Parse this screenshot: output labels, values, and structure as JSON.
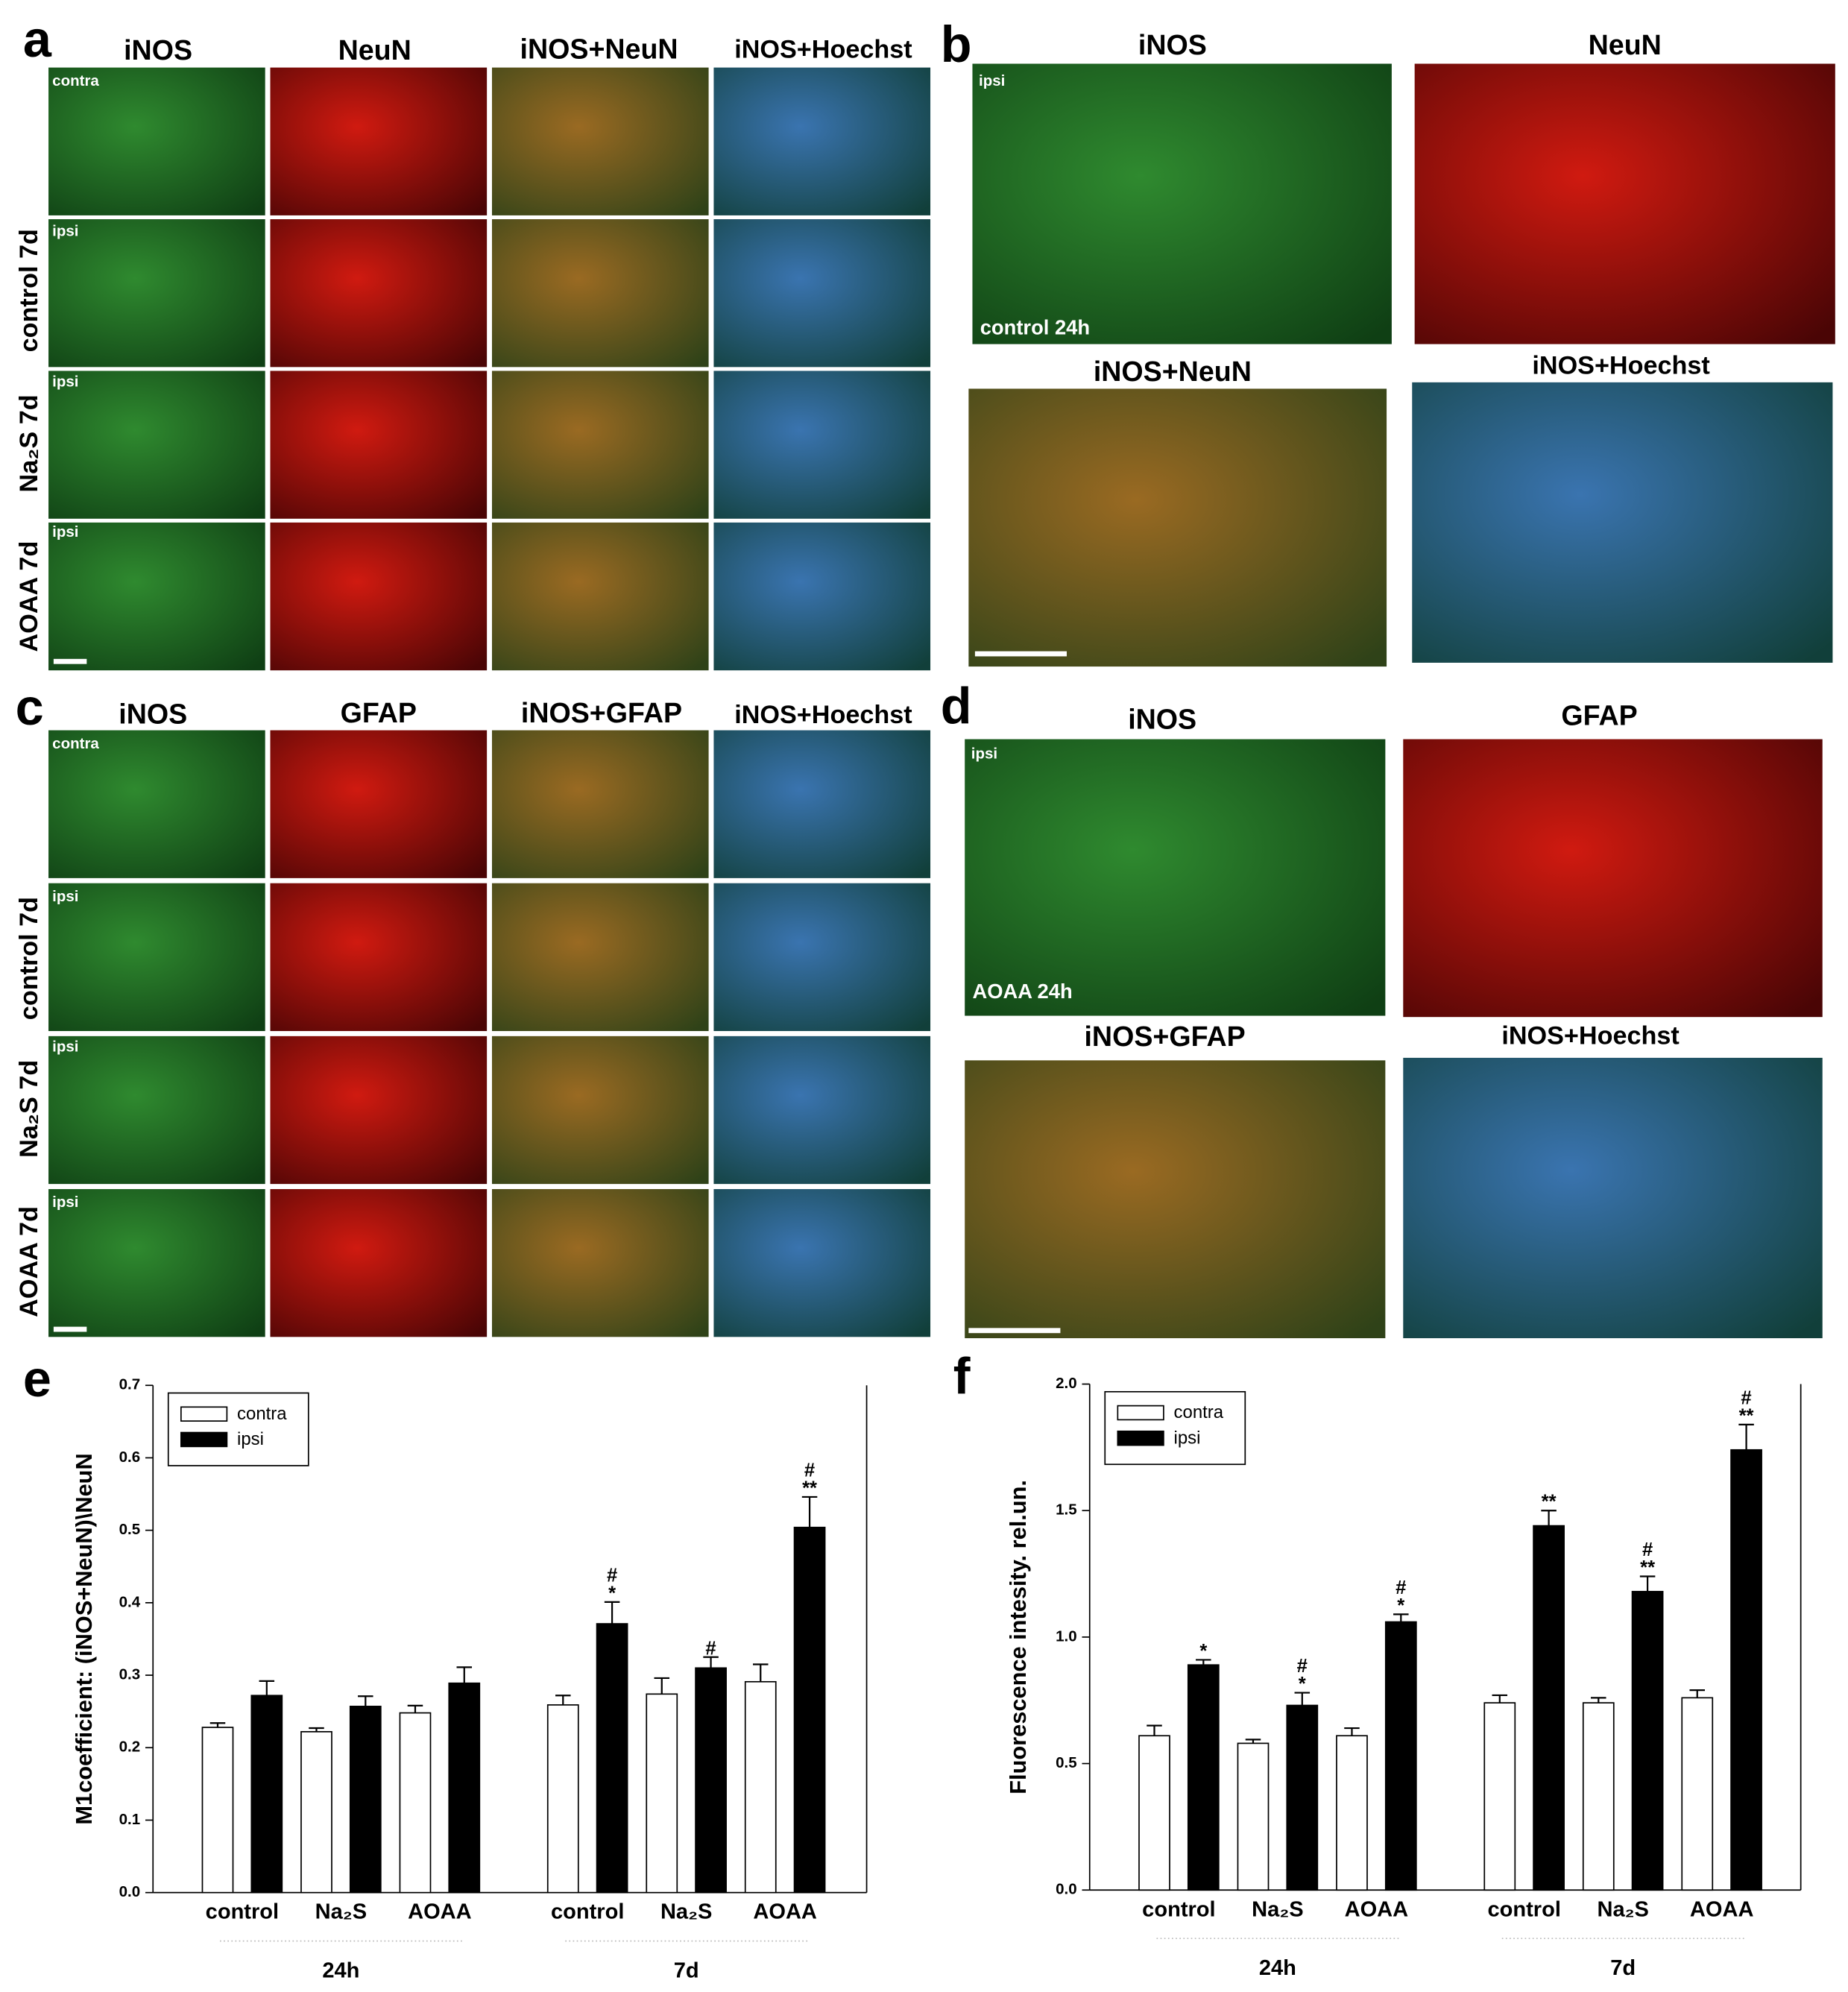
{
  "panels": {
    "a": {
      "letter": "a",
      "columns": [
        "iNOS",
        "NeuN",
        "iNOS+NeuN",
        "iNOS+Hoechst"
      ],
      "rows": [
        "control 7d",
        "Na₂S 7d",
        "AOAA 7d"
      ],
      "tags": [
        "contra",
        "ipsi",
        "ipsi",
        "ipsi"
      ]
    },
    "b": {
      "letter": "b",
      "titles": [
        "iNOS",
        "NeuN",
        "iNOS+NeuN",
        "iNOS+Hoechst"
      ],
      "tag": "ipsi",
      "caption": "control 24h"
    },
    "c": {
      "letter": "c",
      "columns": [
        "iNOS",
        "GFAP",
        "iNOS+GFAP",
        "iNOS+Hoechst"
      ],
      "rows": [
        "control 7d",
        "Na₂S 7d",
        "AOAA 7d"
      ],
      "tags": [
        "contra",
        "ipsi",
        "ipsi",
        "ipsi"
      ]
    },
    "d": {
      "letter": "d",
      "titles": [
        "iNOS",
        "GFAP",
        "iNOS+GFAP",
        "iNOS+Hoechst"
      ],
      "tag": "ipsi",
      "caption": "AOAA 24h"
    }
  },
  "chart_data": [
    {
      "type": "bar",
      "letter": "e",
      "y_label": "M1coefficient: (iNOS+NeuN)\\NeuN",
      "categories": [
        "control",
        "Na₂S",
        "AOAA",
        "control",
        "Na₂S",
        "AOAA"
      ],
      "groups": [
        "24h",
        "7d"
      ],
      "series": [
        {
          "name": "contra",
          "color": "#ffffff",
          "values": [
            0.228,
            0.222,
            0.248,
            0.259,
            0.274,
            0.291
          ],
          "errors": [
            0.006,
            0.005,
            0.01,
            0.013,
            0.022,
            0.024
          ]
        },
        {
          "name": "ipsi",
          "color": "#000000",
          "values": [
            0.272,
            0.257,
            0.289,
            0.371,
            0.31,
            0.504
          ],
          "errors": [
            0.02,
            0.014,
            0.022,
            0.03,
            0.015,
            0.042
          ],
          "annotations": [
            null,
            null,
            null,
            [
              "#",
              "*"
            ],
            [
              "#"
            ],
            [
              "#",
              "**"
            ]
          ]
        }
      ],
      "ylim": [
        0,
        0.7
      ],
      "yticks": [
        {
          "value": 0,
          "label": "0.0"
        },
        0.1,
        0.2,
        0.3,
        0.4,
        0.5,
        0.6,
        0.7
      ],
      "legend": "upper-left"
    },
    {
      "type": "bar",
      "letter": "f",
      "y_label": "Fluorescence intesity. rel.un.",
      "categories": [
        "control",
        "Na₂S",
        "AOAA",
        "control",
        "Na₂S",
        "AOAA"
      ],
      "groups": [
        "24h",
        "7d"
      ],
      "series": [
        {
          "name": "contra",
          "color": "#ffffff",
          "values": [
            0.61,
            0.58,
            0.61,
            0.74,
            0.74,
            0.76
          ],
          "errors": [
            0.04,
            0.015,
            0.03,
            0.03,
            0.02,
            0.03
          ]
        },
        {
          "name": "ipsi",
          "color": "#000000",
          "values": [
            0.89,
            0.73,
            1.06,
            1.44,
            1.18,
            1.74
          ],
          "errors": [
            0.02,
            0.05,
            0.03,
            0.06,
            0.06,
            0.1
          ],
          "annotations": [
            [
              "*"
            ],
            [
              "#",
              "*"
            ],
            [
              "#",
              "*"
            ],
            [
              "**"
            ],
            [
              "#",
              "**"
            ],
            [
              "#",
              "**"
            ]
          ]
        }
      ],
      "ylim": [
        0,
        2
      ],
      "yticks": [
        {
          "value": 0,
          "label": "0.0"
        },
        0.5,
        {
          "value": 1,
          "label": "1.0"
        },
        1.5,
        {
          "value": 2,
          "label": "2.0"
        }
      ],
      "legend": "upper-left"
    }
  ]
}
